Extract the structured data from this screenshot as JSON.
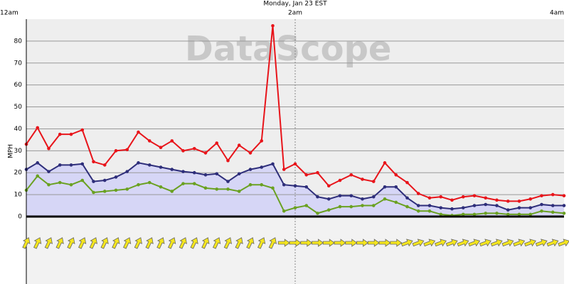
{
  "chart_data": {
    "type": "line",
    "title": "Monday, Jan 23 EST",
    "ylabel": "MPH",
    "watermark": "DataScope",
    "categories": [
      "12am",
      null,
      null,
      null,
      null,
      null,
      null,
      null,
      null,
      null,
      null,
      null,
      null,
      null,
      null,
      null,
      null,
      null,
      null,
      null,
      null,
      null,
      null,
      null,
      "2am",
      null,
      null,
      null,
      null,
      null,
      null,
      null,
      null,
      null,
      null,
      null,
      null,
      null,
      null,
      null,
      null,
      null,
      null,
      null,
      null,
      null,
      null,
      null,
      "4am"
    ],
    "ylim": [
      0,
      90
    ],
    "yticks": [
      0,
      10,
      20,
      30,
      40,
      50,
      60,
      70,
      80
    ],
    "grid": true,
    "series": [
      {
        "color": "#e8141a",
        "values": [
          33,
          40.5,
          31,
          37.5,
          37.5,
          39.5,
          25,
          23.5,
          30,
          30.5,
          38.5,
          34.5,
          31.5,
          34.5,
          30,
          31,
          29,
          33.5,
          25.5,
          32.5,
          29,
          34.5,
          87,
          21.5,
          24,
          19,
          20,
          14,
          16.5,
          19,
          17,
          16,
          24.5,
          19,
          15.5,
          10.5,
          8.5,
          9,
          7.5,
          9,
          9.5,
          8.5,
          7.5,
          7,
          7,
          8,
          9.5,
          10,
          9.5
        ]
      },
      {
        "color": "#2e2e7a",
        "area": true,
        "area_color": "#d6d6f6",
        "values": [
          21.5,
          24.5,
          20.5,
          23.5,
          23.5,
          24,
          16,
          16.5,
          18,
          20.5,
          24.5,
          23.5,
          22.5,
          21.5,
          20.5,
          20,
          19,
          19.5,
          16,
          19.5,
          21.5,
          22.5,
          24,
          14.5,
          14,
          13.5,
          9,
          8,
          9.5,
          9.5,
          8,
          9,
          13.5,
          13.5,
          8.5,
          5,
          5,
          4,
          3.5,
          4,
          5,
          5.5,
          5,
          3,
          4,
          4,
          5.5,
          5,
          5
        ]
      },
      {
        "color": "#6aa121",
        "values": [
          12,
          18.5,
          14.5,
          15.5,
          14.5,
          16.5,
          11,
          11.5,
          12,
          12.5,
          14.5,
          15.5,
          13.5,
          11.5,
          15,
          15,
          13,
          12.5,
          12.5,
          11.5,
          14.5,
          14.5,
          13,
          2.5,
          4,
          5,
          1.5,
          3,
          4.5,
          4.5,
          5,
          5,
          8,
          6.5,
          4.5,
          2.5,
          2.5,
          1,
          0.5,
          1,
          1,
          1.5,
          1.5,
          1,
          1,
          1,
          2.5,
          2,
          1.5
        ]
      }
    ],
    "wind_direction": [
      25,
      25,
      25,
      25,
      25,
      25,
      25,
      25,
      25,
      25,
      25,
      25,
      25,
      25,
      25,
      25,
      25,
      25,
      25,
      25,
      25,
      25,
      25,
      90,
      90,
      90,
      90,
      90,
      90,
      90,
      90,
      90,
      90,
      90,
      70,
      70,
      70,
      70,
      70,
      70,
      70,
      70,
      70,
      70,
      70,
      70,
      70,
      70,
      70
    ],
    "arrow_color": "#f5e61e"
  }
}
